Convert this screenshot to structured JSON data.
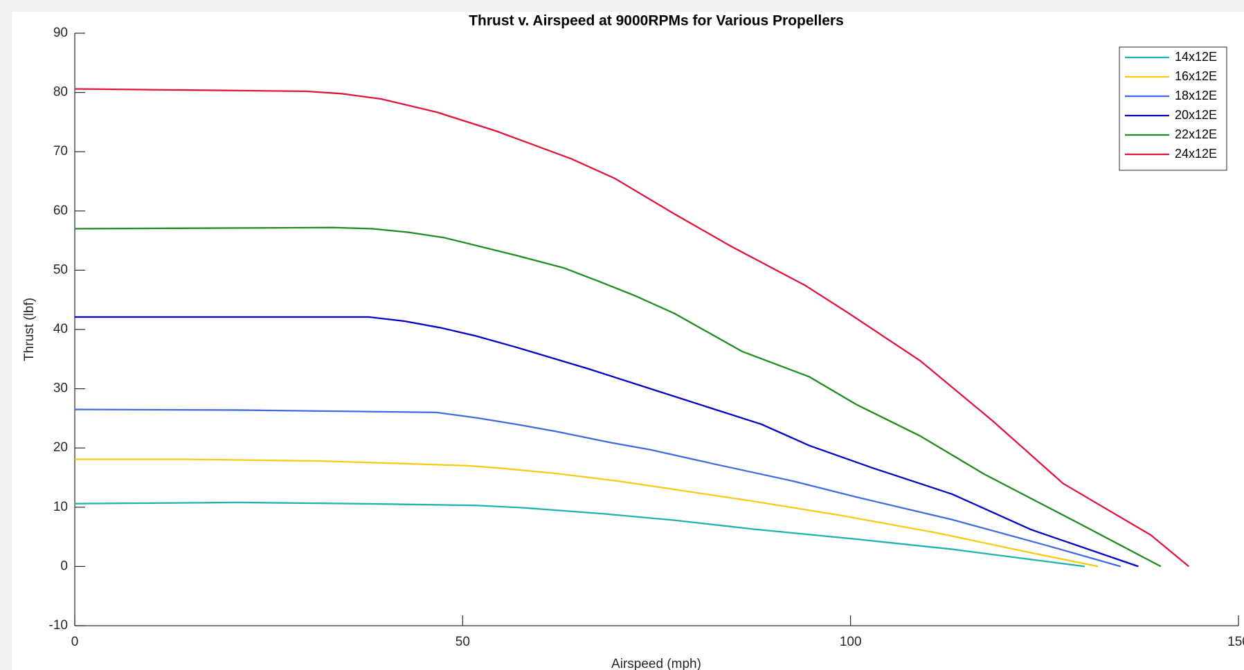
{
  "chart_data": {
    "type": "line",
    "title": "Thrust v. Airspeed at 9000RPMs for Various Propellers",
    "xlabel": "Airspeed (mph)",
    "ylabel": "Thrust (lbf)",
    "xlim": [
      0,
      150
    ],
    "xticks": [
      0,
      50,
      100,
      150
    ],
    "ylim": [
      -10,
      90
    ],
    "yticks": [
      -10,
      0,
      10,
      20,
      30,
      40,
      50,
      60,
      70,
      80,
      90
    ],
    "grid": false,
    "legend_position": "upper-right",
    "series": [
      {
        "name": "14x12E",
        "color": "#1fb3ad",
        "x": [
          0,
          21.1,
          36.4,
          51.7,
          57.9,
          68.1,
          77.3,
          87.5,
          100.8,
          113.1,
          130.2
        ],
        "values": [
          10.6,
          10.8,
          10.6,
          10.3,
          9.9,
          8.9,
          7.8,
          6.3,
          4.6,
          2.9,
          0
        ]
      },
      {
        "name": "16x12E",
        "color": "#f7cb15",
        "x": [
          0,
          13.9,
          31.3,
          41.5,
          50.7,
          54.8,
          62,
          70.1,
          77.3,
          87.5,
          98.8,
          111,
          123.3,
          131.9
        ],
        "values": [
          18.1,
          18.1,
          17.8,
          17.4,
          17,
          16.6,
          15.7,
          14.4,
          13,
          11,
          8.6,
          5.7,
          2.3,
          0
        ]
      },
      {
        "name": "18x12E",
        "color": "#4169e1",
        "x": [
          0,
          21.1,
          46.6,
          51.7,
          56.9,
          62,
          69.1,
          74.2,
          82.4,
          92.6,
          100.8,
          113.1,
          125.4,
          134.8
        ],
        "values": [
          26.5,
          26.4,
          26,
          25.1,
          24,
          22.8,
          20.9,
          19.7,
          17.3,
          14.4,
          11.7,
          7.9,
          3.5,
          0
        ]
      },
      {
        "name": "20x12E",
        "color": "#0000c8",
        "x": [
          0,
          37.9,
          42.5,
          47.1,
          51.7,
          56.9,
          66.1,
          74.2,
          88.5,
          94.7,
          102.9,
          113.1,
          123.3,
          137.1
        ],
        "values": [
          42.1,
          42.1,
          41.4,
          40.3,
          38.9,
          37,
          33.4,
          30,
          24,
          20.4,
          16.6,
          12.2,
          6.2,
          0
        ]
      },
      {
        "name": "22x12E",
        "color": "#1e8c1e",
        "x": [
          0,
          33.3,
          38.4,
          43,
          47.6,
          56.9,
          63,
          67.6,
          72.2,
          77.3,
          86,
          94.7,
          100.8,
          109,
          117.2,
          129.4,
          140
        ],
        "values": [
          57,
          57.2,
          57,
          56.4,
          55.5,
          52.5,
          50.4,
          48.1,
          45.7,
          42.7,
          36.3,
          32,
          27.3,
          22,
          15.6,
          7.3,
          0
        ]
      },
      {
        "name": "24x12E",
        "color": "#e0143c",
        "x": [
          0,
          29.8,
          34.4,
          39.5,
          46.6,
          54.3,
          64,
          69.6,
          77.3,
          84.5,
          94.2,
          99.8,
          109,
          118.2,
          127.4,
          138.7,
          143.6
        ],
        "values": [
          80.6,
          80.2,
          79.8,
          78.9,
          76.7,
          73.5,
          68.8,
          65.5,
          59.5,
          54.1,
          47.4,
          42.7,
          34.7,
          24.7,
          14,
          5.3,
          0
        ]
      }
    ]
  }
}
